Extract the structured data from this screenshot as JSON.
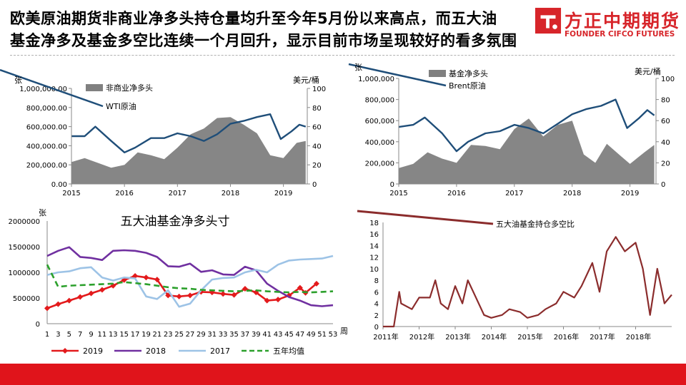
{
  "header": {
    "title_line1": "欧美原油期货非商业净多头持仓量均升至今年5月份以来高点，而五大油",
    "title_line2": "基金净多及基金多空比连续一个月回升，显示目前市场呈现较好的看多氛围",
    "logo_cn": "方正中期期货",
    "logo_en": "FOUNDER CIFCO FUTURES",
    "brand_color": "#d7252a"
  },
  "footer": {
    "bar_color": "#e0141b"
  },
  "chart_data": [
    {
      "id": "wti",
      "type": "area",
      "left_unit": "张",
      "right_unit": "美元/桶",
      "ylim_left": [
        0,
        1000000
      ],
      "yticks_left": [
        "0.00",
        "200,000.00",
        "400,000.00",
        "600,000.00",
        "800,000.00",
        "1,000,000.00"
      ],
      "ylim_right": [
        0,
        100
      ],
      "yticks_right": [
        "0",
        "20",
        "40",
        "60",
        "80",
        "100"
      ],
      "xlim": [
        2015,
        2019.45
      ],
      "xticks": [
        "2015",
        "2016",
        "2017",
        "2018",
        "2019"
      ],
      "legend_area": "非商业净多头",
      "legend_line": "WTI原油",
      "area_color": "#808080",
      "line_color": "#1f4e79",
      "area_points": [
        [
          2015.0,
          230000
        ],
        [
          2015.25,
          270000
        ],
        [
          2015.5,
          220000
        ],
        [
          2015.75,
          170000
        ],
        [
          2016.0,
          200000
        ],
        [
          2016.25,
          330000
        ],
        [
          2016.5,
          300000
        ],
        [
          2016.75,
          260000
        ],
        [
          2017.0,
          380000
        ],
        [
          2017.25,
          520000
        ],
        [
          2017.5,
          580000
        ],
        [
          2017.75,
          690000
        ],
        [
          2018.0,
          700000
        ],
        [
          2018.25,
          620000
        ],
        [
          2018.5,
          530000
        ],
        [
          2018.75,
          300000
        ],
        [
          2019.0,
          270000
        ],
        [
          2019.25,
          430000
        ],
        [
          2019.42,
          450000
        ]
      ],
      "line_points": [
        [
          2015.0,
          50
        ],
        [
          2015.25,
          50
        ],
        [
          2015.45,
          60
        ],
        [
          2015.75,
          45
        ],
        [
          2016.0,
          33
        ],
        [
          2016.2,
          38
        ],
        [
          2016.5,
          48
        ],
        [
          2016.75,
          48
        ],
        [
          2017.0,
          53
        ],
        [
          2017.25,
          50
        ],
        [
          2017.5,
          45
        ],
        [
          2017.75,
          52
        ],
        [
          2018.0,
          63
        ],
        [
          2018.25,
          66
        ],
        [
          2018.5,
          70
        ],
        [
          2018.75,
          73
        ],
        [
          2018.95,
          47
        ],
        [
          2019.15,
          55
        ],
        [
          2019.3,
          62
        ],
        [
          2019.42,
          60
        ]
      ]
    },
    {
      "id": "brent",
      "type": "area",
      "left_unit": "张",
      "right_unit": "美元/桶",
      "ylim_left": [
        0,
        1000000
      ],
      "yticks_left": [
        "0",
        "200,000",
        "400,000",
        "600,000",
        "800,000",
        "1,000,000"
      ],
      "ylim_right": [
        0,
        100
      ],
      "yticks_right": [
        "0",
        "20",
        "40",
        "60",
        "80",
        "100"
      ],
      "xlim": [
        2015,
        2019.45
      ],
      "xticks": [
        "2015",
        "2016",
        "2017",
        "2018",
        "2019"
      ],
      "legend_area": "基金净多头",
      "legend_line": "Brent原油",
      "area_color": "#808080",
      "line_color": "#1f4e79",
      "area_points": [
        [
          2015.0,
          150000
        ],
        [
          2015.25,
          190000
        ],
        [
          2015.5,
          300000
        ],
        [
          2015.75,
          240000
        ],
        [
          2016.0,
          200000
        ],
        [
          2016.25,
          370000
        ],
        [
          2016.5,
          360000
        ],
        [
          2016.75,
          330000
        ],
        [
          2017.0,
          520000
        ],
        [
          2017.25,
          620000
        ],
        [
          2017.5,
          450000
        ],
        [
          2017.75,
          560000
        ],
        [
          2018.0,
          600000
        ],
        [
          2018.2,
          280000
        ],
        [
          2018.4,
          200000
        ],
        [
          2018.6,
          380000
        ],
        [
          2018.85,
          260000
        ],
        [
          2019.0,
          190000
        ],
        [
          2019.25,
          300000
        ],
        [
          2019.42,
          370000
        ]
      ],
      "line_points": [
        [
          2015.0,
          54
        ],
        [
          2015.25,
          56
        ],
        [
          2015.45,
          63
        ],
        [
          2015.75,
          48
        ],
        [
          2016.0,
          31
        ],
        [
          2016.2,
          40
        ],
        [
          2016.5,
          48
        ],
        [
          2016.75,
          50
        ],
        [
          2017.0,
          56
        ],
        [
          2017.25,
          53
        ],
        [
          2017.5,
          48
        ],
        [
          2017.75,
          57
        ],
        [
          2018.0,
          66
        ],
        [
          2018.25,
          71
        ],
        [
          2018.5,
          74
        ],
        [
          2018.75,
          80
        ],
        [
          2018.95,
          53
        ],
        [
          2019.15,
          62
        ],
        [
          2019.3,
          70
        ],
        [
          2019.42,
          65
        ]
      ]
    },
    {
      "id": "five-funds",
      "type": "line",
      "title": "五大油基金净多头寸",
      "unit_left": "张",
      "xlabel": "周",
      "ylim": [
        0,
        2000000
      ],
      "yticks": [
        "0",
        "500000",
        "1000000",
        "1500000",
        "2000000"
      ],
      "xlim": [
        1,
        53
      ],
      "xticks": [
        "1",
        "3",
        "5",
        "7",
        "9",
        "11",
        "13",
        "15",
        "17",
        "19",
        "21",
        "23",
        "25",
        "27",
        "29",
        "31",
        "33",
        "35",
        "37",
        "39",
        "41",
        "43",
        "45",
        "47",
        "49",
        "51",
        "53"
      ],
      "series": [
        {
          "name": "2019",
          "color": "#e31a1c",
          "style": "marker",
          "x": [
            1,
            3,
            5,
            7,
            9,
            11,
            13,
            15,
            17,
            19,
            21,
            23,
            25,
            27,
            29,
            31,
            33,
            35,
            37,
            39,
            41,
            43,
            45,
            47,
            48,
            50
          ],
          "values": [
            300000,
            380000,
            450000,
            520000,
            590000,
            660000,
            740000,
            850000,
            930000,
            900000,
            860000,
            550000,
            530000,
            550000,
            620000,
            610000,
            580000,
            560000,
            680000,
            610000,
            450000,
            470000,
            550000,
            700000,
            600000,
            780000
          ]
        },
        {
          "name": "2018",
          "color": "#7030a0",
          "style": "solid",
          "x": [
            1,
            3,
            5,
            7,
            9,
            11,
            13,
            15,
            17,
            19,
            21,
            23,
            25,
            27,
            29,
            31,
            33,
            35,
            37,
            39,
            41,
            43,
            45,
            47,
            49,
            51,
            53
          ],
          "values": [
            1320000,
            1420000,
            1490000,
            1300000,
            1280000,
            1240000,
            1420000,
            1430000,
            1420000,
            1380000,
            1300000,
            1120000,
            1110000,
            1170000,
            1010000,
            1040000,
            960000,
            950000,
            1110000,
            1040000,
            780000,
            640000,
            520000,
            450000,
            360000,
            340000,
            360000
          ]
        },
        {
          "name": "2017",
          "color": "#9dc3e6",
          "style": "solid",
          "x": [
            1,
            3,
            5,
            7,
            9,
            11,
            13,
            15,
            17,
            19,
            21,
            23,
            25,
            27,
            29,
            31,
            33,
            35,
            37,
            39,
            41,
            43,
            45,
            47,
            49,
            51,
            53
          ],
          "values": [
            950000,
            1000000,
            1020000,
            1080000,
            1100000,
            900000,
            840000,
            900000,
            880000,
            530000,
            480000,
            650000,
            330000,
            390000,
            650000,
            860000,
            890000,
            900000,
            1000000,
            1050000,
            1000000,
            1150000,
            1230000,
            1250000,
            1260000,
            1270000,
            1320000
          ]
        },
        {
          "name": "五年均值",
          "color": "#2ca02c",
          "style": "dashed",
          "x": [
            1,
            3,
            5,
            7,
            9,
            11,
            13,
            15,
            17,
            19,
            21,
            23,
            25,
            27,
            29,
            31,
            33,
            35,
            37,
            39,
            41,
            43,
            45,
            47,
            49,
            51,
            53
          ],
          "values": [
            1150000,
            720000,
            740000,
            750000,
            760000,
            770000,
            780000,
            810000,
            790000,
            770000,
            740000,
            710000,
            690000,
            680000,
            660000,
            650000,
            640000,
            630000,
            640000,
            650000,
            630000,
            620000,
            610000,
            620000,
            610000,
            620000,
            630000
          ]
        }
      ]
    },
    {
      "id": "ratio",
      "type": "line",
      "ylim": [
        0,
        18
      ],
      "yticks": [
        "0",
        "2",
        "4",
        "6",
        "8",
        "10",
        "12",
        "14",
        "16",
        "18"
      ],
      "xlim": [
        2011,
        2019
      ],
      "xticks": [
        "2011年",
        "2012年",
        "2013年",
        "2014年",
        "2015年",
        "2016年",
        "2017年",
        "2018年"
      ],
      "series": [
        {
          "name": "五大油基金持仓多空比",
          "color": "#8b2c2c",
          "x": [
            2011.0,
            2011.3,
            2011.45,
            2011.5,
            2011.8,
            2012.0,
            2012.3,
            2012.45,
            2012.6,
            2012.8,
            2013.0,
            2013.2,
            2013.35,
            2013.5,
            2013.8,
            2014.0,
            2014.3,
            2014.5,
            2014.8,
            2015.0,
            2015.3,
            2015.5,
            2015.8,
            2016.0,
            2016.3,
            2016.5,
            2016.8,
            2017.0,
            2017.2,
            2017.45,
            2017.7,
            2018.0,
            2018.2,
            2018.4,
            2018.6,
            2018.8,
            2019.0
          ],
          "values": [
            0,
            0,
            6,
            4,
            3,
            5,
            5,
            8,
            4,
            3,
            7,
            4,
            8,
            6,
            2,
            1.5,
            2,
            3,
            2.5,
            1.5,
            2,
            3,
            4,
            6,
            5,
            7,
            11,
            6,
            13,
            15.5,
            13,
            14.5,
            10,
            2,
            10,
            4,
            5.5
          ]
        }
      ]
    }
  ]
}
